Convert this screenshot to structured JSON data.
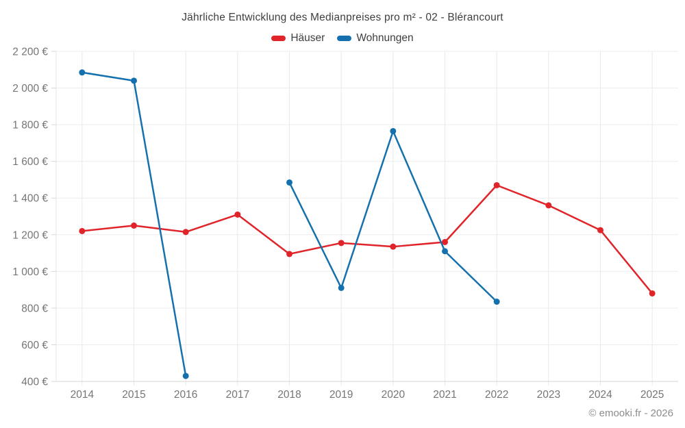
{
  "footer": {
    "copyright": "© emooki.fr - 2026"
  },
  "chart_data": {
    "type": "line",
    "title": "Jährliche Entwicklung des Medianpreises pro m² - 02 - Blérancourt",
    "categories": [
      "2014",
      "2015",
      "2016",
      "2017",
      "2018",
      "2019",
      "2020",
      "2021",
      "2022",
      "2023",
      "2024",
      "2025"
    ],
    "series": [
      {
        "name": "Häuser",
        "color": "#e02429",
        "values": [
          1220,
          1250,
          1215,
          1310,
          1095,
          1155,
          1135,
          1160,
          1470,
          1360,
          1225,
          880
        ]
      },
      {
        "name": "Wohnungen",
        "color": "#1471ae",
        "values": [
          2085,
          2040,
          430,
          null,
          1485,
          910,
          1765,
          1110,
          835,
          null,
          null,
          null
        ]
      }
    ],
    "xlabel": "",
    "ylabel": "",
    "ylim": [
      400,
      2200
    ],
    "yticks": [
      400,
      600,
      800,
      1000,
      1200,
      1400,
      1600,
      1800,
      2000,
      2200
    ],
    "ytick_labels": [
      "400 €",
      "600 €",
      "800 €",
      "1 000 €",
      "1 200 €",
      "1 400 €",
      "1 600 €",
      "1 800 €",
      "2 000 €",
      "2 200 €"
    ],
    "grid": true,
    "legend_position": "top"
  }
}
